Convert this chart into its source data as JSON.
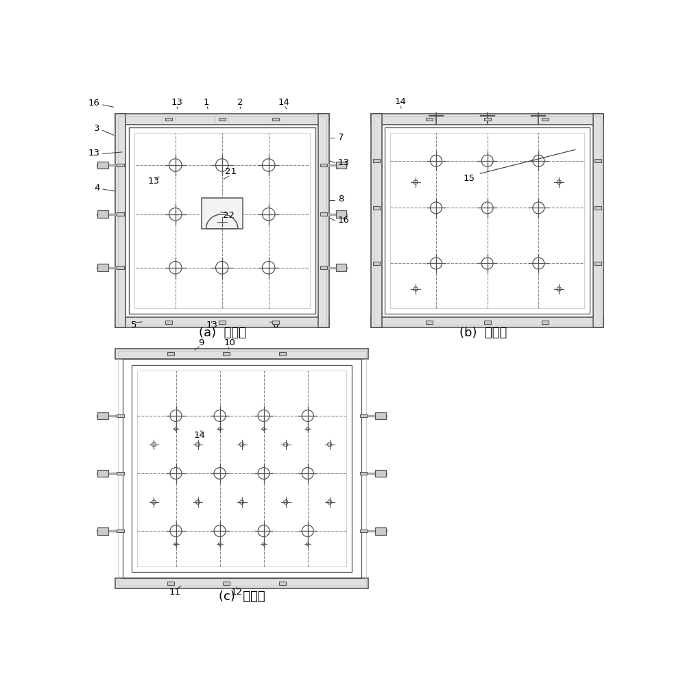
{
  "bg_color": "#ffffff",
  "line_color": "#555555",
  "dashed_color": "#888888",
  "light_gray": "#bbbbbb",
  "medium_gray": "#999999",
  "label_fontsize": 11,
  "caption_fontsize": 13,
  "front_caption": "(a)  正视图",
  "side_caption": "(b)  侧视图",
  "top_caption": "(c)  俦视图"
}
